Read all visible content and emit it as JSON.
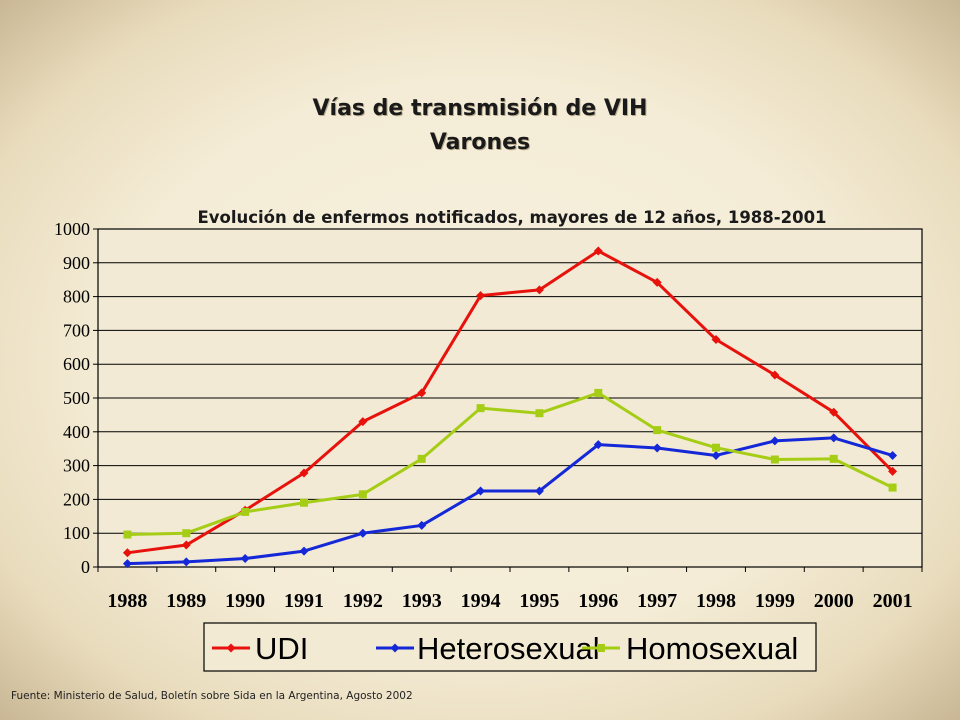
{
  "slide": {
    "title": "Vías de transmisión de VIH",
    "subtitle": "Varones",
    "source": "Fuente: Ministerio de Salud, Boletín sobre Sida en la Argentina, Agosto 2002"
  },
  "chart_data": {
    "type": "line",
    "title": "Evolución de enfermos notificados, mayores de 12 años, 1988-2001",
    "xlabel": "",
    "ylabel": "",
    "categories": [
      "1988",
      "1989",
      "1990",
      "1991",
      "1992",
      "1993",
      "1994",
      "1995",
      "1996",
      "1997",
      "1998",
      "1999",
      "2000",
      "2001"
    ],
    "ylim": [
      0,
      1000
    ],
    "yticks": [
      0,
      100,
      200,
      300,
      400,
      500,
      600,
      700,
      800,
      900,
      1000
    ],
    "grid": true,
    "legend_position": "bottom",
    "series": [
      {
        "name": "UDI",
        "color": "#e8120c",
        "marker": "diamond",
        "values": [
          42,
          65,
          168,
          278,
          430,
          515,
          803,
          820,
          935,
          842,
          673,
          568,
          458,
          283
        ]
      },
      {
        "name": "Heterosexual",
        "color": "#1428d8",
        "marker": "diamond",
        "values": [
          10,
          15,
          25,
          47,
          100,
          123,
          225,
          225,
          362,
          352,
          330,
          373,
          382,
          330
        ]
      },
      {
        "name": "Homosexual",
        "color": "#a6cd16",
        "marker": "square",
        "values": [
          96,
          100,
          163,
          190,
          215,
          320,
          470,
          455,
          515,
          405,
          353,
          318,
          320,
          235
        ]
      }
    ]
  }
}
